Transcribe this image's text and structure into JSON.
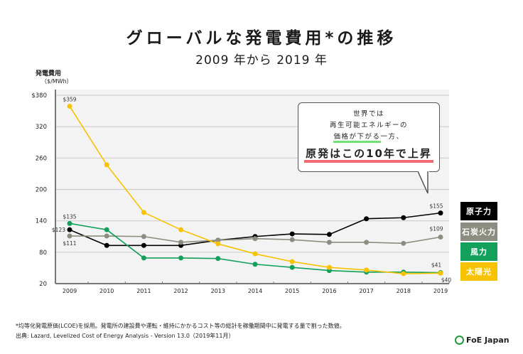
{
  "header": {
    "title": "グローバルな発電費用*の推移",
    "subtitle": "2009 年から 2019 年"
  },
  "axis": {
    "ylabel": "発電費用",
    "yunit": "（$/MWh）"
  },
  "callout": {
    "line1": "世界では",
    "line2": "再生可能エネルギーの",
    "line3_highlight": "価格が下がる",
    "line3_rest": "一方、",
    "line4": "原発はこの10年で上昇"
  },
  "legend": [
    {
      "label": "原子力",
      "color": "#000000"
    },
    {
      "label": "石炭火力",
      "color": "#8c8c80"
    },
    {
      "label": "風力",
      "color": "#12a05a"
    },
    {
      "label": "太陽光",
      "color": "#f7c300"
    }
  ],
  "footer": {
    "note": "*均等化発電原価(LCOE)を採用。発電所の建設費や運転・維持にかかるコスト等の総計を稼働期間中に発電する量で割った数値。",
    "source": "出典: Lazard, Levelized Cost of Energy Analysis - Version 13.0（2019年11月）",
    "logo": "FoE Japan"
  },
  "chart_data": {
    "type": "line",
    "title": "グローバルな発電費用*の推移",
    "subtitle": "2009 年から 2019 年",
    "xlabel": "",
    "ylabel": "発電費用（$/MWh）",
    "x": [
      "2009",
      "2010",
      "2011",
      "2012",
      "2013",
      "2014",
      "2015",
      "2016",
      "2017",
      "2018",
      "2019"
    ],
    "ylim": [
      20,
      380
    ],
    "yticks": [
      20,
      80,
      140,
      200,
      260,
      320,
      380
    ],
    "ytick_labels": [
      "20",
      "80",
      "140",
      "200",
      "260",
      "320",
      "$380"
    ],
    "grid": true,
    "legend_position": "right",
    "series": [
      {
        "name": "原子力",
        "color": "#000000",
        "values": [
          123,
          93,
          93,
          93,
          103,
          110,
          115,
          114,
          144,
          146,
          155
        ]
      },
      {
        "name": "石炭火力",
        "color": "#8c8c80",
        "values": [
          111,
          111,
          110,
          99,
          103,
          106,
          104,
          99,
          99,
          97,
          109
        ]
      },
      {
        "name": "風力",
        "color": "#12a05a",
        "values": [
          135,
          123,
          69,
          69,
          68,
          57,
          51,
          45,
          42,
          42,
          41
        ]
      },
      {
        "name": "太陽光",
        "color": "#f7c300",
        "values": [
          359,
          247,
          156,
          123,
          96,
          77,
          62,
          51,
          46,
          39,
          40
        ]
      }
    ],
    "annotations": [
      {
        "series": "太陽光",
        "x": "2009",
        "text": "$359"
      },
      {
        "series": "風力",
        "x": "2009",
        "text": "$135"
      },
      {
        "series": "原子力",
        "x": "2009",
        "text": "$123"
      },
      {
        "series": "石炭火力",
        "x": "2009",
        "text": "$111"
      },
      {
        "series": "原子力",
        "x": "2019",
        "text": "$155"
      },
      {
        "series": "石炭火力",
        "x": "2019",
        "text": "$109"
      },
      {
        "series": "風力",
        "x": "2019",
        "text": "$41"
      },
      {
        "series": "太陽光",
        "x": "2019",
        "text": "$40"
      }
    ]
  }
}
